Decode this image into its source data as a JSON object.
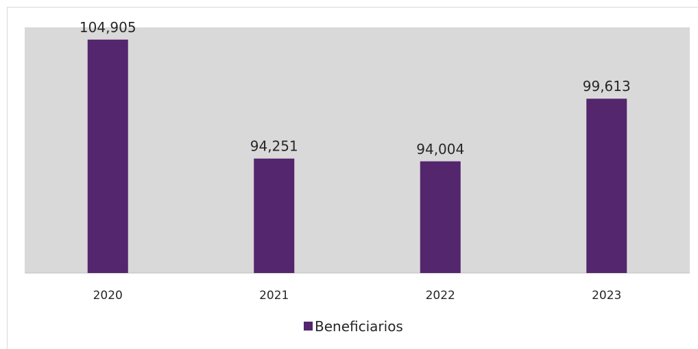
{
  "chart_data": {
    "type": "bar",
    "categories": [
      "2020",
      "2021",
      "2022",
      "2023"
    ],
    "series": [
      {
        "name": "Beneficiarios",
        "values": [
          104905,
          94251,
          94004,
          99613
        ],
        "labels": [
          "104,905",
          "94,251",
          "94,004",
          "99,613"
        ]
      }
    ],
    "ylim": [
      84000,
      106000
    ],
    "grid": false,
    "legend": "bottom",
    "colors": {
      "bar": "#54266e",
      "plot_background": "#d9d9d9",
      "axis": "#bfbfbf"
    }
  }
}
